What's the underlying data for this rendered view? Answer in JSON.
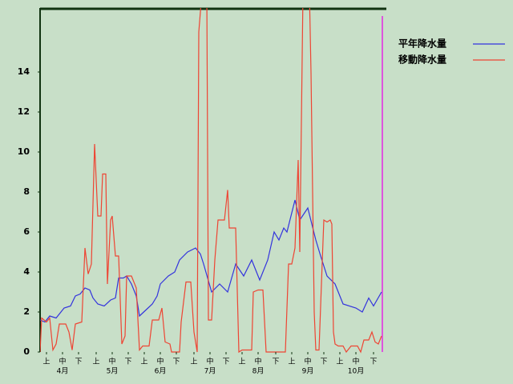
{
  "chart_data": {
    "type": "line",
    "xlim": [
      0,
      214
    ],
    "ylim": [
      0,
      17.2
    ],
    "yticks": [
      0,
      2,
      4,
      6,
      8,
      10,
      12,
      14
    ],
    "xticks": [
      {
        "value": 4,
        "label": "上"
      },
      {
        "value": 14,
        "label": "中"
      },
      {
        "value": 24,
        "label": "下"
      },
      {
        "value": 35,
        "label": "上"
      },
      {
        "value": 45,
        "label": "中"
      },
      {
        "value": 55,
        "label": "下"
      },
      {
        "value": 65,
        "label": "上"
      },
      {
        "value": 75,
        "label": "中"
      },
      {
        "value": 85,
        "label": "下"
      },
      {
        "value": 96,
        "label": "上"
      },
      {
        "value": 106,
        "label": "中"
      },
      {
        "value": 116,
        "label": "下"
      },
      {
        "value": 126,
        "label": "上"
      },
      {
        "value": 136,
        "label": "中"
      },
      {
        "value": 147,
        "label": "下"
      },
      {
        "value": 157,
        "label": "上"
      },
      {
        "value": 167,
        "label": "中"
      },
      {
        "value": 177,
        "label": "下"
      },
      {
        "value": 187,
        "label": "上"
      },
      {
        "value": 197,
        "label": "中"
      },
      {
        "value": 208,
        "label": "下"
      }
    ],
    "month_labels": [
      {
        "value": 14,
        "label": "4月"
      },
      {
        "value": 45,
        "label": "5月"
      },
      {
        "value": 75,
        "label": "6月"
      },
      {
        "value": 106,
        "label": "7月"
      },
      {
        "value": 136,
        "label": "8月"
      },
      {
        "value": 167,
        "label": "9月"
      },
      {
        "value": 197,
        "label": "10月"
      }
    ],
    "series": [
      {
        "name": "平年降水量",
        "color": "#3333dd",
        "x": [
          0,
          3,
          6,
          10,
          15,
          19,
          22,
          25,
          28,
          31,
          33,
          36,
          40,
          44,
          47,
          49,
          52,
          54,
          57,
          60,
          62,
          66,
          70,
          73,
          75,
          80,
          84,
          87,
          92,
          97,
          100,
          102,
          107,
          112,
          117,
          122,
          127,
          132,
          137,
          142,
          146,
          149,
          152,
          154,
          159,
          162,
          167,
          172,
          175,
          179,
          184,
          189,
          197,
          201,
          205,
          208,
          213
        ],
        "values": [
          1.6,
          1.5,
          1.8,
          1.7,
          2.2,
          2.3,
          2.8,
          2.9,
          3.2,
          3.1,
          2.7,
          2.4,
          2.3,
          2.6,
          2.7,
          3.7,
          3.7,
          3.8,
          3.4,
          2.8,
          1.8,
          2.1,
          2.4,
          2.8,
          3.4,
          3.8,
          4.0,
          4.6,
          5.0,
          5.2,
          4.9,
          4.4,
          3.0,
          3.4,
          3.0,
          4.4,
          3.8,
          4.6,
          3.6,
          4.6,
          6.0,
          5.6,
          6.2,
          6.0,
          7.6,
          6.6,
          7.2,
          5.6,
          4.8,
          3.8,
          3.4,
          2.4,
          2.2,
          2.0,
          2.7,
          2.3,
          3.0
        ]
      },
      {
        "name": "移動降水量",
        "color": "#ee4433",
        "x": [
          0,
          1,
          4,
          6,
          8,
          10,
          12,
          16,
          18,
          20,
          22,
          26,
          28,
          30,
          32,
          34,
          36,
          38,
          39,
          41,
          42,
          44,
          45,
          47,
          49,
          51,
          53,
          54,
          57,
          60,
          62,
          64,
          68,
          70,
          74,
          76,
          78,
          81,
          82,
          87,
          88,
          91,
          94,
          96,
          98,
          99,
          101,
          104,
          105,
          107,
          109,
          111,
          115,
          117,
          118,
          122,
          124,
          126,
          132,
          133,
          136,
          139,
          141,
          153,
          155,
          157,
          159,
          161,
          162,
          164,
          168,
          169,
          171,
          172,
          174,
          176,
          177,
          179,
          181,
          182,
          183,
          184,
          186,
          189,
          191,
          194,
          198,
          200,
          202,
          205,
          207,
          209,
          211,
          213
        ],
        "values": [
          0,
          1.7,
          1.5,
          1.7,
          0.1,
          0.4,
          1.4,
          1.4,
          1.0,
          0.1,
          1.4,
          1.5,
          5.2,
          3.9,
          4.4,
          10.4,
          6.8,
          6.8,
          8.9,
          8.9,
          3.4,
          6.6,
          6.8,
          4.8,
          4.8,
          0.4,
          0.8,
          3.8,
          3.8,
          3.2,
          0.1,
          0.3,
          0.3,
          1.6,
          1.6,
          2.2,
          0.5,
          0.4,
          0,
          0,
          1.5,
          3.5,
          3.5,
          1.0,
          0,
          16,
          18,
          18,
          1.6,
          1.6,
          4.6,
          6.6,
          6.6,
          8.1,
          6.2,
          6.2,
          0,
          0.1,
          0.1,
          3.0,
          3.1,
          3.1,
          0,
          0,
          4.4,
          4.4,
          5.2,
          9.6,
          5.0,
          18,
          18,
          14,
          2,
          0.1,
          0.1,
          4.5,
          6.6,
          6.5,
          6.6,
          6.4,
          1.0,
          0.4,
          0.3,
          0.3,
          0,
          0.3,
          0.3,
          0,
          0.6,
          0.6,
          1.0,
          0.5,
          0.4,
          0.8
        ]
      }
    ]
  }
}
